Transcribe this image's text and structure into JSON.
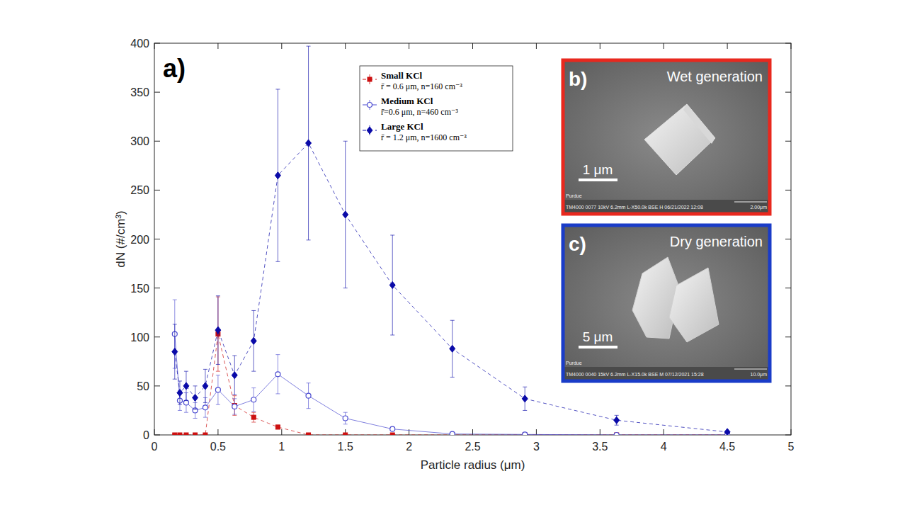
{
  "chart_data": {
    "type": "line",
    "title": "a)",
    "x_label": "Particle radius (μm)",
    "y_label": "dN (#/cm³)",
    "x": [
      0.16,
      0.2,
      0.25,
      0.32,
      0.4,
      0.5,
      0.63,
      0.78,
      0.97,
      1.21,
      1.5,
      1.87,
      2.34,
      2.91,
      3.63,
      4.5
    ],
    "xlim": [
      0,
      5
    ],
    "xticks": [
      0,
      0.5,
      1,
      1.5,
      2,
      2.5,
      3,
      3.5,
      4,
      4.5,
      5
    ],
    "ylim": [
      0,
      400
    ],
    "yticks": [
      0,
      50,
      100,
      150,
      200,
      250,
      300,
      350,
      400
    ],
    "grid": false,
    "legend": "top",
    "series": [
      {
        "name": "Small KCl",
        "label_detail": "r̄ = 0.6 μm, n=160 cm⁻³",
        "color": "#cc1111",
        "marker": "square",
        "line_style": "dashed",
        "values": [
          0,
          0,
          0,
          0,
          0,
          103,
          30,
          18,
          8,
          0,
          0,
          0,
          0,
          0,
          0,
          0
        ],
        "errors": [
          0.5,
          0.5,
          0.5,
          0.5,
          0.5,
          38,
          10,
          5,
          2,
          0.5,
          0.5,
          0.5,
          0.5,
          0.5,
          0.5,
          0.5
        ]
      },
      {
        "name": "Medium KCl",
        "label_detail": "r̄=0.6 μm, n=460 cm⁻³",
        "color": "#4a4ad0",
        "marker": "open-circle",
        "line_style": "solid",
        "values": [
          103,
          35,
          33,
          25,
          28,
          46,
          29,
          36,
          62,
          40,
          17,
          6,
          1,
          0.5,
          0,
          0
        ],
        "errors": [
          35,
          10,
          10,
          8,
          10,
          15,
          8,
          12,
          20,
          13,
          6,
          2,
          1,
          0.5,
          0.5,
          0.5
        ]
      },
      {
        "name": "Large KCl",
        "label_detail": "r̄ = 1.2 μm, n=1600 cm⁻³",
        "color": "#0a0aa8",
        "marker": "diamond",
        "line_style": "dashed",
        "values": [
          85,
          43,
          50,
          38,
          50,
          107,
          61,
          96,
          265,
          298,
          225,
          153,
          88,
          37,
          15,
          3
        ],
        "errors": [
          28,
          12,
          15,
          12,
          17,
          35,
          20,
          31,
          88,
          99,
          75,
          51,
          29,
          12,
          5,
          1
        ]
      }
    ]
  },
  "insets": [
    {
      "label": "b)",
      "title": "Wet generation",
      "scale_bar": "1 μm",
      "color": "#e8281e",
      "footer": "TM4000 0077 10kV 6.2mm L-X50.0k BSE H 06/21/2022 12:08",
      "footer_scale": "2.00μm",
      "credit": "Purdue"
    },
    {
      "label": "c)",
      "title": "Dry generation",
      "scale_bar": "5 μm",
      "color": "#1a3cc8",
      "footer": "TM4000 0040 15kV 6.2mm L-X15.0k BSE M 07/12/2021 15:28",
      "footer_scale": "10.0μm",
      "credit": "Purdue"
    }
  ]
}
